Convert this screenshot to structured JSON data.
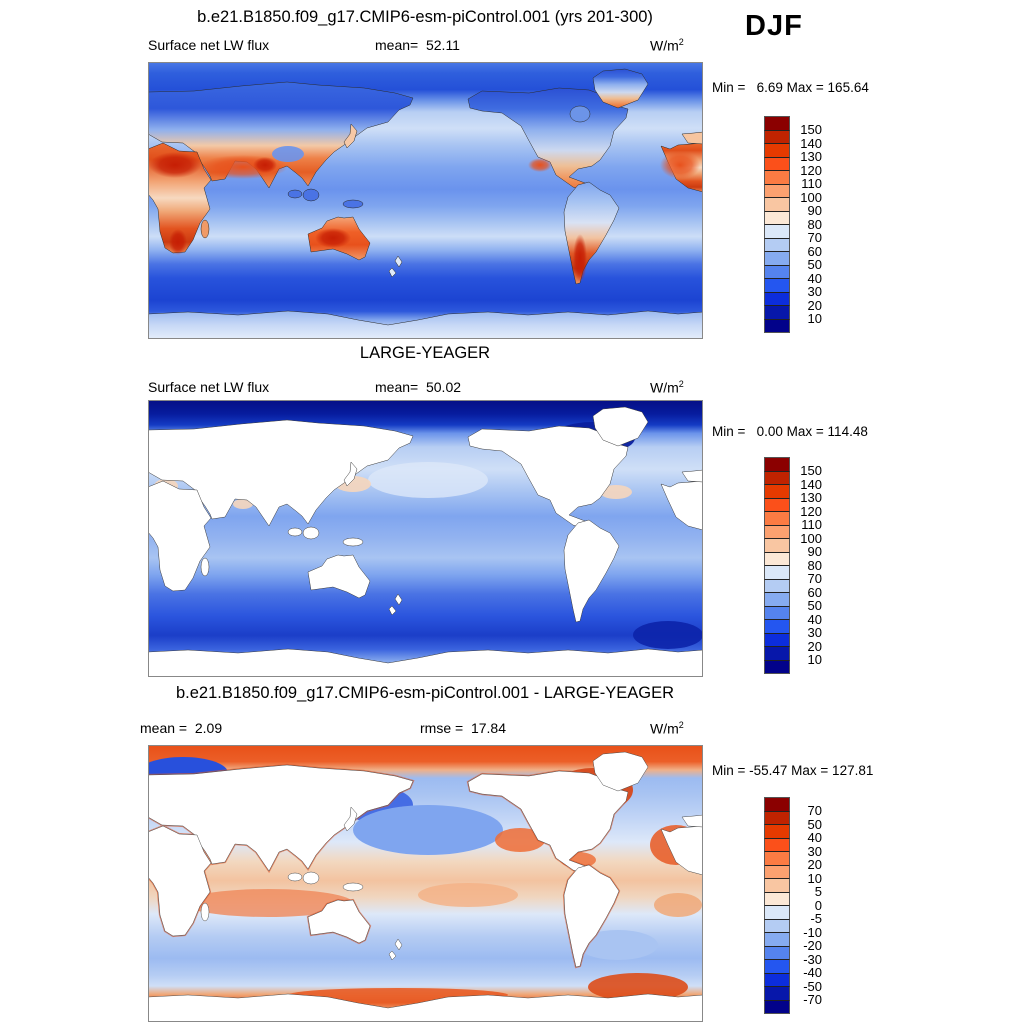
{
  "header": {
    "season": "DJF"
  },
  "panels": [
    {
      "title": "b.e21.B1850.f09_g17.CMIP6-esm-piControl.001 (yrs 201-300)",
      "var_label": "Surface net LW flux",
      "mean_text": "mean=  52.11",
      "units_base": "W/m",
      "units_exp": "2",
      "minmax_text": "Min =   6.69 Max = 165.64",
      "colorbar_ticks": [
        "150",
        "140",
        "130",
        "120",
        "110",
        "100",
        "90",
        "80",
        "70",
        "60",
        "50",
        "40",
        "30",
        "20",
        "10"
      ]
    },
    {
      "title": "LARGE-YEAGER",
      "var_label": "Surface net LW flux",
      "mean_text": "mean=  50.02",
      "units_base": "W/m",
      "units_exp": "2",
      "minmax_text": "Min =   0.00 Max = 114.48",
      "colorbar_ticks": [
        "150",
        "140",
        "130",
        "120",
        "110",
        "100",
        "90",
        "80",
        "70",
        "60",
        "50",
        "40",
        "30",
        "20",
        "10"
      ]
    },
    {
      "title": "b.e21.B1850.f09_g17.CMIP6-esm-piControl.001 - LARGE-YEAGER",
      "mean_text": "mean =  2.09",
      "rmse_text": "rmse =  17.84",
      "units_base": "W/m",
      "units_exp": "2",
      "minmax_text": "Min = -55.47 Max = 127.81",
      "colorbar_ticks": [
        "70",
        "50",
        "40",
        "30",
        "20",
        "10",
        "5",
        "0",
        "-5",
        "-10",
        "-20",
        "-30",
        "-40",
        "-50",
        "-70"
      ]
    }
  ],
  "palette": [
    "#8b0000",
    "#c02300",
    "#e63a00",
    "#fb501a",
    "#fb7b43",
    "#fca170",
    "#f9c6a2",
    "#fce8d6",
    "#dbe8f9",
    "#b4ccf3",
    "#86abf0",
    "#5583ee",
    "#2456f0",
    "#0c2ddc",
    "#0717aa",
    "#02028a"
  ],
  "chart_data": [
    {
      "type": "filled_contour_map",
      "panel": "top",
      "title": "b.e21.B1850.f09_g17.CMIP6-esm-piControl.001 (yrs 201-300)",
      "season": "DJF",
      "variable": "Surface net LW flux",
      "units": "W/m^2",
      "mean": 52.11,
      "min": 6.69,
      "max": 165.64,
      "contour_levels": [
        10,
        20,
        30,
        40,
        50,
        60,
        70,
        80,
        90,
        100,
        110,
        120,
        130,
        140,
        150
      ],
      "legend_position": "right",
      "projection": "global cylindrical equidistant, Pacific-centered",
      "land_masked": false,
      "pattern_notes": "High values (red, 100-150+) over Sahara, Middle East, India, Australia, southern Africa, Andes/Argentina, Mexico; low values (blue, 10-60) over oceans, Arctic and Southern Ocean"
    },
    {
      "type": "filled_contour_map",
      "panel": "middle",
      "title": "LARGE-YEAGER",
      "season": "DJF",
      "variable": "Surface net LW flux",
      "units": "W/m^2",
      "mean": 50.02,
      "min": 0.0,
      "max": 114.48,
      "contour_levels": [
        10,
        20,
        30,
        40,
        50,
        60,
        70,
        80,
        90,
        100,
        110,
        120,
        130,
        140,
        150
      ],
      "legend_position": "right",
      "projection": "global cylindrical equidistant, Pacific-centered",
      "land_masked": true,
      "pattern_notes": "Ocean-only observations; near-zero (dark navy) Arctic, 40-80 mid/low-latitude oceans, dark blue Southern Ocean"
    },
    {
      "type": "filled_contour_map_difference",
      "panel": "bottom",
      "title": "b.e21.B1850.f09_g17.CMIP6-esm-piControl.001 - LARGE-YEAGER",
      "season": "DJF",
      "variable": "Surface net LW flux",
      "units": "W/m^2",
      "mean": 2.09,
      "rmse": 17.84,
      "min": -55.47,
      "max": 127.81,
      "contour_levels": [
        -70,
        -50,
        -40,
        -30,
        -20,
        -10,
        -5,
        0,
        5,
        10,
        20,
        30,
        40,
        50,
        70
      ],
      "legend_position": "right",
      "projection": "global cylindrical equidistant, Pacific-centered",
      "land_masked": true,
      "pattern_notes": "Large positive (red) differences across Arctic, Baffin/Hudson, coastlines and near Antarctica; negative (blue) North Pacific, Barents Sea, southern mid-latitude oceans"
    }
  ]
}
